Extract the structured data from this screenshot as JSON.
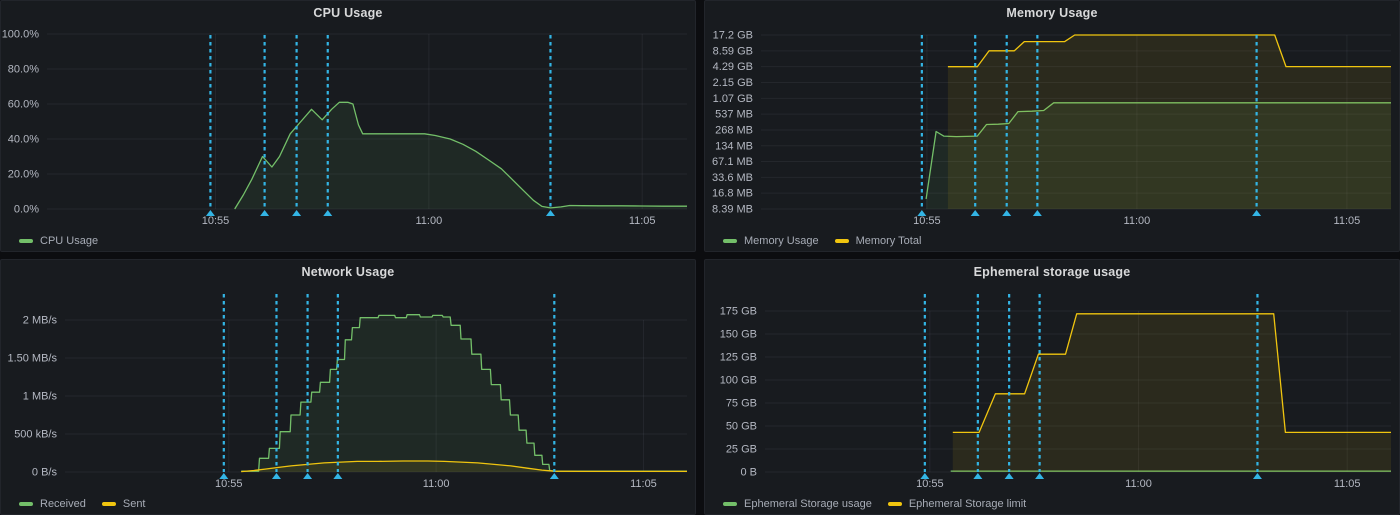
{
  "page": {
    "background": "#0c0d10",
    "panel_background": "#181b1f",
    "panel_border": "#22252b",
    "title_color": "#d8d9da",
    "axis_text_color": "#b4b8c2",
    "legend_text_color": "#a7acb6",
    "grid_color": "rgba(204,204,220,0.07)",
    "green": "#73bf69",
    "yellow": "#f0c50f"
  },
  "annotations": {
    "color": "#33b5e5",
    "style": "dashed-vertical-with-arrow",
    "times": [
      654.88,
      656.15,
      656.9,
      657.63,
      662.85
    ]
  },
  "chart_data": [
    {
      "id": "cpu",
      "title": "CPU Usage",
      "type": "area",
      "y_unit": "percent",
      "y_scale": "linear",
      "x_range": [
        651.05,
        666.05
      ],
      "x_ticks": [
        {
          "t": 655,
          "label": "10:55"
        },
        {
          "t": 660,
          "label": "11:00"
        },
        {
          "t": 665,
          "label": "11:05"
        }
      ],
      "y_ticks": [
        {
          "value": 100,
          "label": "100.0%"
        },
        {
          "value": 80,
          "label": "80.0%"
        },
        {
          "value": 60,
          "label": "60.0%"
        },
        {
          "value": 40,
          "label": "40.0%"
        },
        {
          "value": 20,
          "label": "20.0%"
        },
        {
          "value": 0,
          "label": "0.0%"
        }
      ],
      "series": [
        {
          "name": "CPU Usage",
          "color": "#73bf69",
          "points": [
            [
              655.45,
              0
            ],
            [
              655.65,
              8
            ],
            [
              655.85,
              17
            ],
            [
              656.1,
              30
            ],
            [
              656.32,
              24
            ],
            [
              656.5,
              30
            ],
            [
              656.75,
              43
            ],
            [
              657.0,
              50
            ],
            [
              657.25,
              57
            ],
            [
              657.5,
              51
            ],
            [
              657.72,
              57
            ],
            [
              657.9,
              61
            ],
            [
              658.1,
              61
            ],
            [
              658.22,
              60
            ],
            [
              658.35,
              48
            ],
            [
              658.45,
              43
            ],
            [
              658.8,
              43
            ],
            [
              659.3,
              43
            ],
            [
              659.9,
              43
            ],
            [
              660.15,
              42
            ],
            [
              660.5,
              40
            ],
            [
              660.8,
              37
            ],
            [
              661.1,
              33
            ],
            [
              661.4,
              28
            ],
            [
              661.7,
              23
            ],
            [
              661.95,
              17
            ],
            [
              662.2,
              11
            ],
            [
              662.45,
              5
            ],
            [
              662.65,
              1.5
            ],
            [
              662.85,
              0.6
            ],
            [
              663.1,
              1.2
            ],
            [
              663.3,
              2
            ],
            [
              663.6,
              1.9
            ],
            [
              664.0,
              1.8
            ],
            [
              664.5,
              1.8
            ],
            [
              665.0,
              1.7
            ],
            [
              665.5,
              1.6
            ],
            [
              666.05,
              1.6
            ]
          ]
        }
      ]
    },
    {
      "id": "memory",
      "title": "Memory Usage",
      "type": "area",
      "y_unit": "MB",
      "y_scale": "log2",
      "x_range": [
        651.05,
        666.05
      ],
      "x_ticks": [
        {
          "t": 655,
          "label": "10:55"
        },
        {
          "t": 660,
          "label": "11:00"
        },
        {
          "t": 665,
          "label": "11:05"
        }
      ],
      "y_ticks": [
        {
          "value": 17200,
          "label": "17.2 GB"
        },
        {
          "value": 8590,
          "label": "8.59 GB"
        },
        {
          "value": 4290,
          "label": "4.29 GB"
        },
        {
          "value": 2150,
          "label": "2.15 GB"
        },
        {
          "value": 1070,
          "label": "1.07 GB"
        },
        {
          "value": 537,
          "label": "537 MB"
        },
        {
          "value": 268,
          "label": "268 MB"
        },
        {
          "value": 134,
          "label": "134 MB"
        },
        {
          "value": 67.1,
          "label": "67.1 MB"
        },
        {
          "value": 33.6,
          "label": "33.6 MB"
        },
        {
          "value": 16.8,
          "label": "16.8 MB"
        },
        {
          "value": 8.39,
          "label": "8.39 MB"
        }
      ],
      "series": [
        {
          "name": "Memory Usage",
          "color": "#73bf69",
          "points": [
            [
              654.98,
              13
            ],
            [
              655.22,
              250
            ],
            [
              655.4,
              205
            ],
            [
              655.7,
              200
            ],
            [
              656.2,
              205
            ],
            [
              656.42,
              340
            ],
            [
              656.7,
              345
            ],
            [
              656.95,
              355
            ],
            [
              657.17,
              600
            ],
            [
              657.5,
              610
            ],
            [
              657.78,
              630
            ],
            [
              658.02,
              880
            ],
            [
              659.0,
              880
            ],
            [
              660.0,
              880
            ],
            [
              661.0,
              880
            ],
            [
              662.0,
              880
            ],
            [
              663.0,
              880
            ],
            [
              664.0,
              880
            ],
            [
              665.0,
              880
            ],
            [
              666.05,
              880
            ]
          ]
        },
        {
          "name": "Memory Total",
          "color": "#f0c50f",
          "points": [
            [
              655.5,
              4290
            ],
            [
              656.2,
              4290
            ],
            [
              656.48,
              8590
            ],
            [
              657.08,
              8590
            ],
            [
              657.32,
              12900
            ],
            [
              658.28,
              12900
            ],
            [
              658.52,
              17200
            ],
            [
              663.28,
              17200
            ],
            [
              663.55,
              4300
            ],
            [
              664.5,
              4300
            ],
            [
              666.05,
              4300
            ]
          ]
        }
      ]
    },
    {
      "id": "network",
      "title": "Network Usage",
      "type": "area",
      "y_unit": "MB/s",
      "y_scale": "linear",
      "x_range": [
        651.05,
        666.05
      ],
      "x_ticks": [
        {
          "t": 655,
          "label": "10:55"
        },
        {
          "t": 660,
          "label": "11:00"
        },
        {
          "t": 665,
          "label": "11:05"
        }
      ],
      "y_ticks": [
        {
          "value": 2,
          "label": "2 MB/s"
        },
        {
          "value": 1.5,
          "label": "1.50 MB/s"
        },
        {
          "value": 1,
          "label": "1 MB/s"
        },
        {
          "value": 0.5,
          "label": "500 kB/s"
        },
        {
          "value": 0,
          "label": "0 B/s"
        }
      ],
      "series": [
        {
          "name": "Received",
          "color": "#73bf69",
          "points": [
            [
              655.3,
              0.01
            ],
            [
              655.72,
              0.01
            ],
            [
              655.74,
              0.18
            ],
            [
              655.96,
              0.18
            ],
            [
              655.98,
              0.31
            ],
            [
              656.22,
              0.31
            ],
            [
              656.24,
              0.53
            ],
            [
              656.48,
              0.53
            ],
            [
              656.5,
              0.75
            ],
            [
              656.72,
              0.75
            ],
            [
              656.74,
              0.92
            ],
            [
              656.98,
              0.92
            ],
            [
              657.0,
              1.05
            ],
            [
              657.19,
              1.05
            ],
            [
              657.21,
              1.18
            ],
            [
              657.43,
              1.18
            ],
            [
              657.45,
              1.35
            ],
            [
              657.6,
              1.35
            ],
            [
              657.62,
              1.48
            ],
            [
              657.79,
              1.48
            ],
            [
              657.81,
              1.74
            ],
            [
              657.96,
              1.74
            ],
            [
              657.98,
              1.9
            ],
            [
              658.15,
              1.9
            ],
            [
              658.17,
              2.03
            ],
            [
              658.6,
              2.03
            ],
            [
              658.62,
              2.06
            ],
            [
              659.0,
              2.06
            ],
            [
              659.02,
              2.03
            ],
            [
              659.28,
              2.03
            ],
            [
              659.3,
              2.07
            ],
            [
              659.6,
              2.07
            ],
            [
              659.62,
              2.04
            ],
            [
              659.9,
              2.04
            ],
            [
              659.92,
              2.06
            ],
            [
              660.15,
              2.06
            ],
            [
              660.17,
              2.04
            ],
            [
              660.34,
              2.04
            ],
            [
              660.36,
              1.93
            ],
            [
              660.58,
              1.93
            ],
            [
              660.6,
              1.75
            ],
            [
              660.84,
              1.75
            ],
            [
              660.86,
              1.55
            ],
            [
              661.08,
              1.55
            ],
            [
              661.1,
              1.35
            ],
            [
              661.31,
              1.35
            ],
            [
              661.33,
              1.15
            ],
            [
              661.55,
              1.15
            ],
            [
              661.57,
              0.95
            ],
            [
              661.77,
              0.95
            ],
            [
              661.79,
              0.75
            ],
            [
              661.98,
              0.75
            ],
            [
              662.0,
              0.55
            ],
            [
              662.17,
              0.55
            ],
            [
              662.19,
              0.38
            ],
            [
              662.36,
              0.38
            ],
            [
              662.38,
              0.22
            ],
            [
              662.55,
              0.22
            ],
            [
              662.57,
              0.1
            ],
            [
              662.72,
              0.1
            ],
            [
              662.74,
              0.02
            ],
            [
              662.85,
              0.01
            ],
            [
              664.0,
              0.01
            ],
            [
              666.05,
              0.01
            ]
          ]
        },
        {
          "name": "Sent",
          "color": "#f0c50f",
          "points": [
            [
              655.3,
              0.005
            ],
            [
              655.6,
              0.02
            ],
            [
              655.9,
              0.04
            ],
            [
              656.2,
              0.06
            ],
            [
              656.5,
              0.08
            ],
            [
              656.9,
              0.1
            ],
            [
              657.3,
              0.12
            ],
            [
              657.7,
              0.13
            ],
            [
              658.1,
              0.14
            ],
            [
              658.6,
              0.14
            ],
            [
              659.2,
              0.145
            ],
            [
              659.8,
              0.145
            ],
            [
              660.2,
              0.14
            ],
            [
              660.6,
              0.13
            ],
            [
              661.0,
              0.12
            ],
            [
              661.4,
              0.1
            ],
            [
              661.8,
              0.08
            ],
            [
              662.2,
              0.05
            ],
            [
              662.55,
              0.025
            ],
            [
              662.85,
              0.01
            ],
            [
              663.5,
              0.008
            ],
            [
              666.05,
              0.008
            ]
          ]
        }
      ]
    },
    {
      "id": "ephemeral",
      "title": "Ephemeral storage usage",
      "type": "area",
      "y_unit": "GB",
      "y_scale": "linear",
      "x_range": [
        651.05,
        666.05
      ],
      "x_ticks": [
        {
          "t": 655,
          "label": "10:55"
        },
        {
          "t": 660,
          "label": "11:00"
        },
        {
          "t": 665,
          "label": "11:05"
        }
      ],
      "y_ticks": [
        {
          "value": 175,
          "label": "175 GB"
        },
        {
          "value": 150,
          "label": "150 GB"
        },
        {
          "value": 125,
          "label": "125 GB"
        },
        {
          "value": 100,
          "label": "100 GB"
        },
        {
          "value": 75,
          "label": "75 GB"
        },
        {
          "value": 50,
          "label": "50 GB"
        },
        {
          "value": 25,
          "label": "25 GB"
        },
        {
          "value": 0,
          "label": "0 B"
        }
      ],
      "series": [
        {
          "name": "Ephemeral Storage usage",
          "color": "#73bf69",
          "points": [
            [
              655.5,
              1
            ],
            [
              658,
              1
            ],
            [
              661,
              1
            ],
            [
              664,
              1
            ],
            [
              666.05,
              1
            ]
          ]
        },
        {
          "name": "Ephemeral Storage limit",
          "color": "#f0c50f",
          "points": [
            [
              655.55,
              43
            ],
            [
              656.18,
              43
            ],
            [
              656.57,
              85
            ],
            [
              657.27,
              85
            ],
            [
              657.6,
              128
            ],
            [
              658.25,
              128
            ],
            [
              658.52,
              172
            ],
            [
              663.24,
              172
            ],
            [
              663.52,
              43
            ],
            [
              665.0,
              43
            ],
            [
              666.05,
              43
            ]
          ]
        }
      ]
    }
  ]
}
